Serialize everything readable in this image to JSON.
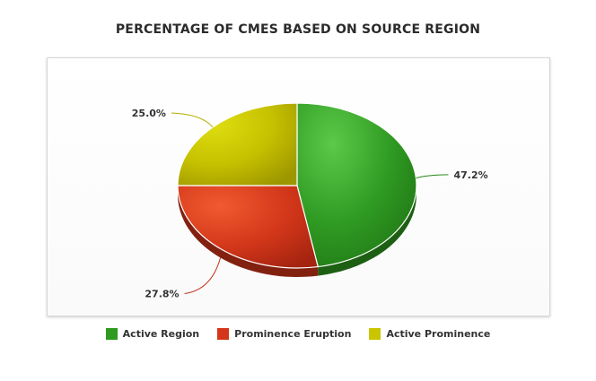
{
  "chart_data": {
    "type": "pie",
    "title": "PERCENTAGE OF CMES BASED ON SOURCE REGION",
    "categories": [
      "Active Region",
      "Prominence Eruption",
      "Active Prominence"
    ],
    "values": [
      47.2,
      27.8,
      25.0
    ],
    "labels": [
      "47.2%",
      "27.8%",
      "25.0%"
    ],
    "colors": [
      "#2e9a1f",
      "#d4361a",
      "#c9c500"
    ],
    "legend_position": "bottom",
    "style": "3d"
  }
}
